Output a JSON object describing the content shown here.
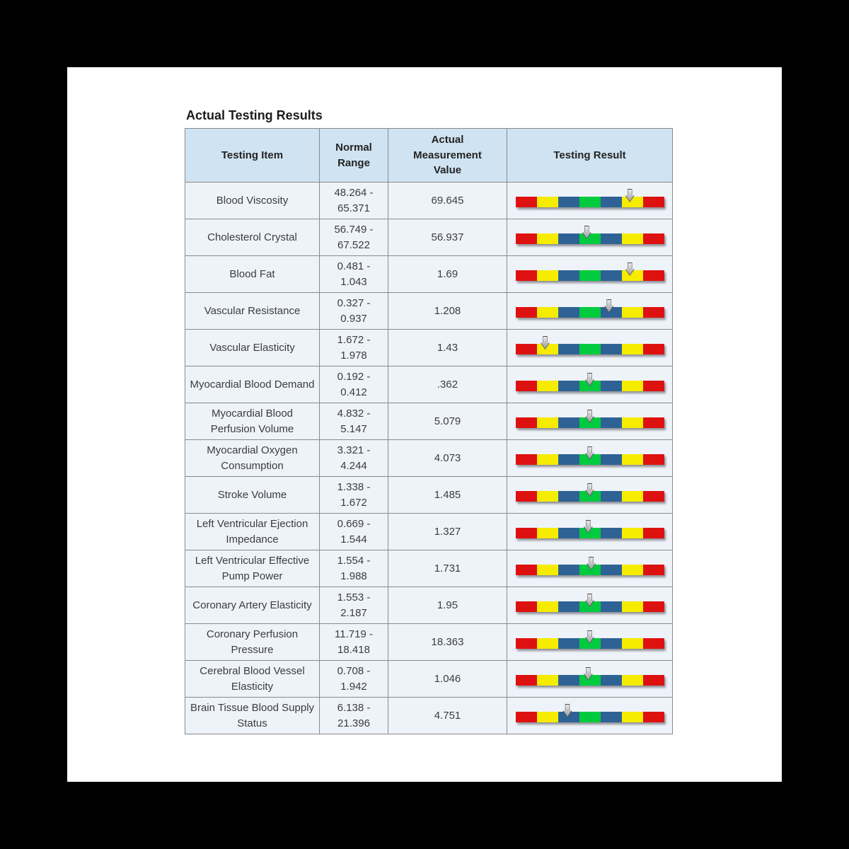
{
  "title": "Actual Testing Results",
  "table": {
    "headers": [
      "Testing Item",
      "Normal Range",
      "Actual Measurement Value",
      "Testing Result"
    ],
    "rows": [
      {
        "item": "Blood Viscosity",
        "range": "48.264 - 65.371",
        "value": "69.645",
        "marker_percent": 77
      },
      {
        "item": "Cholesterol Crystal",
        "range": "56.749 - 67.522",
        "value": "56.937",
        "marker_percent": 48
      },
      {
        "item": "Blood Fat",
        "range": "0.481 - 1.043",
        "value": "1.69",
        "marker_percent": 77
      },
      {
        "item": "Vascular Resistance",
        "range": "0.327 - 0.937",
        "value": "1.208",
        "marker_percent": 63
      },
      {
        "item": "Vascular Elasticity",
        "range": "1.672 - 1.978",
        "value": "1.43",
        "marker_percent": 20
      },
      {
        "item": "Myocardial Blood Demand",
        "range": "0.192 - 0.412",
        "value": ".362",
        "marker_percent": 50
      },
      {
        "item": "Myocardial Blood Perfusion Volume",
        "range": "4.832 - 5.147",
        "value": "5.079",
        "marker_percent": 50
      },
      {
        "item": "Myocardial Oxygen Consumption",
        "range": "3.321 - 4.244",
        "value": "4.073",
        "marker_percent": 50
      },
      {
        "item": "Stroke Volume",
        "range": "1.338 - 1.672",
        "value": "1.485",
        "marker_percent": 50
      },
      {
        "item": "Left Ventricular Ejection Impedance",
        "range": "0.669 - 1.544",
        "value": "1.327",
        "marker_percent": 49
      },
      {
        "item": "Left Ventricular Effective Pump Power",
        "range": "1.554 - 1.988",
        "value": "1.731",
        "marker_percent": 51
      },
      {
        "item": "Coronary Artery Elasticity",
        "range": "1.553 - 2.187",
        "value": "1.95",
        "marker_percent": 50
      },
      {
        "item": "Coronary Perfusion Pressure",
        "range": "11.719 - 18.418",
        "value": "18.363",
        "marker_percent": 50
      },
      {
        "item": "Cerebral Blood Vessel Elasticity",
        "range": "0.708 - 1.942",
        "value": "1.046",
        "marker_percent": 49
      },
      {
        "item": "Brain Tissue Blood Supply Status",
        "range": "6.138 - 21.396",
        "value": "4.751",
        "marker_percent": 35
      }
    ]
  },
  "bar": {
    "segments": [
      "red",
      "yellow",
      "blue",
      "green",
      "blue",
      "yellow",
      "red"
    ],
    "colors": {
      "red": "#de1111",
      "yellow": "#f5ec00",
      "blue": "#2e6295",
      "green": "#00cb3f"
    },
    "marker_color": "#b9b9b9"
  },
  "colors": {
    "header_bg": "#cfe3f2",
    "row_bg": "#eef3fa",
    "page_bg": "#ffffff",
    "backdrop": "#000000"
  }
}
